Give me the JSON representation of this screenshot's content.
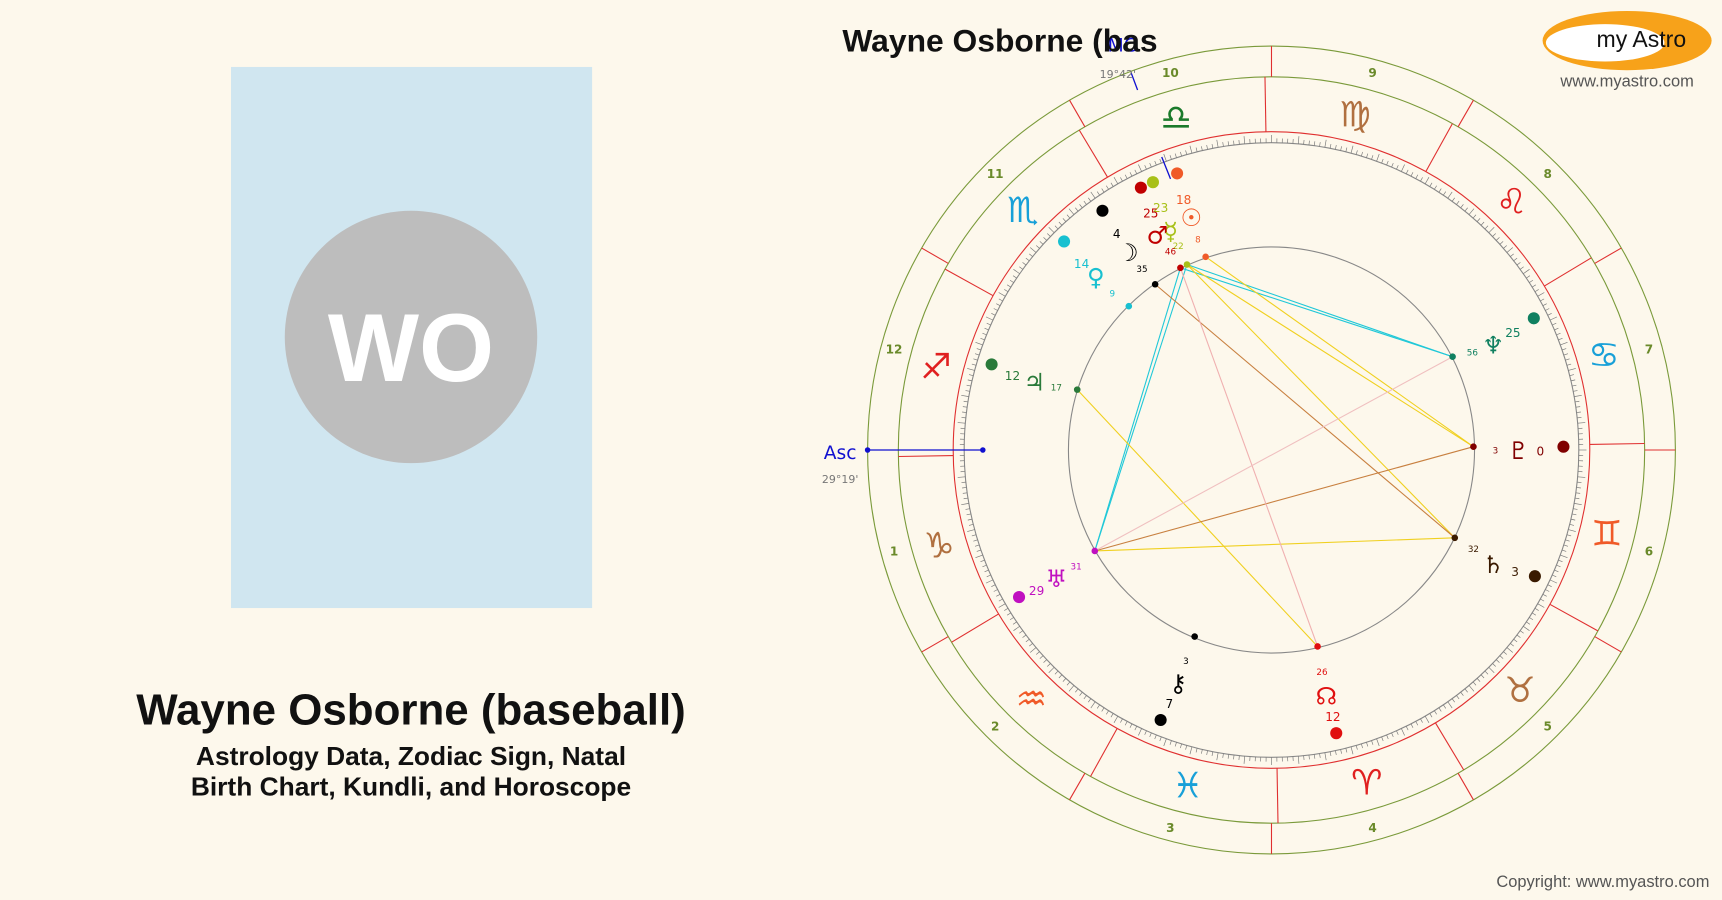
{
  "profile": {
    "initials": "WO",
    "name": "Wayne Osborne (baseball)",
    "subtitle": [
      "Astrology Data, Zodiac Sign, Natal",
      "Birth Chart, Kundli, and Horoscope"
    ]
  },
  "brand": {
    "logo": "my Astro",
    "url": "www.myastro.com"
  },
  "chart": {
    "title": "Wayne Osborne (bas",
    "mc": {
      "label": "MC",
      "position": "19°42'"
    },
    "asc": {
      "label": "Asc",
      "position": "29°19'"
    },
    "houses": [
      "1",
      "2",
      "3",
      "4",
      "5",
      "6",
      "7",
      "8",
      "9",
      "10",
      "11",
      "12"
    ],
    "signs": [
      "♈",
      "♉",
      "♊",
      "♋",
      "♌",
      "♍",
      "♎",
      "♏",
      "♐",
      "♑",
      "♒",
      "♓"
    ],
    "planets": [
      {
        "glyph": "☉",
        "degree": "18",
        "minute": "8"
      },
      {
        "glyph": "☿",
        "degree": "23",
        "minute": "22"
      },
      {
        "glyph": "♂",
        "degree": "25",
        "minute": "46"
      },
      {
        "glyph": "☽",
        "degree": "4",
        "minute": "35"
      },
      {
        "glyph": "♀",
        "degree": "14",
        "minute": "9"
      },
      {
        "glyph": "♃",
        "degree": "12",
        "minute": "17"
      },
      {
        "glyph": "♅",
        "degree": "29",
        "minute": "31"
      },
      {
        "glyph": "⚷",
        "degree": "7",
        "minute": "3"
      },
      {
        "glyph": "☊",
        "degree": "12",
        "minute": "26"
      },
      {
        "glyph": "♄",
        "degree": "3",
        "minute": "32"
      },
      {
        "glyph": "♇",
        "degree": "0",
        "minute": "3"
      },
      {
        "glyph": "♆",
        "degree": "25",
        "minute": "56"
      }
    ]
  },
  "footer": {
    "copyright": "Copyright: www.myastro.com"
  }
}
